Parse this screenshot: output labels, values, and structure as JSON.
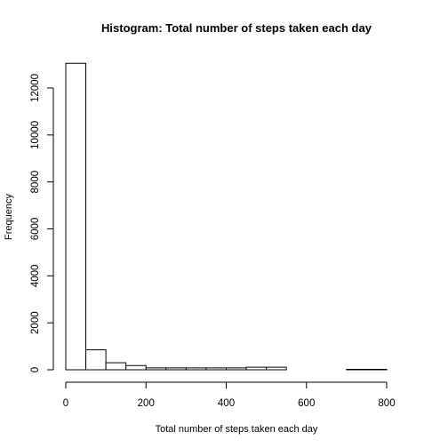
{
  "chart_data": {
    "type": "bar",
    "title": "Histogram: Total number of steps taken each day",
    "xlabel": "Total number of steps taken each day",
    "ylabel": "Frequency",
    "bin_width": 50,
    "bins": [
      {
        "start": 0,
        "end": 50,
        "count": 13050
      },
      {
        "start": 50,
        "end": 100,
        "count": 850
      },
      {
        "start": 100,
        "end": 150,
        "count": 300
      },
      {
        "start": 150,
        "end": 200,
        "count": 180
      },
      {
        "start": 200,
        "end": 250,
        "count": 80
      },
      {
        "start": 250,
        "end": 300,
        "count": 80
      },
      {
        "start": 300,
        "end": 350,
        "count": 80
      },
      {
        "start": 350,
        "end": 400,
        "count": 80
      },
      {
        "start": 400,
        "end": 450,
        "count": 80
      },
      {
        "start": 450,
        "end": 500,
        "count": 110
      },
      {
        "start": 500,
        "end": 550,
        "count": 110
      },
      {
        "start": 550,
        "end": 600,
        "count": 0
      },
      {
        "start": 600,
        "end": 650,
        "count": 0
      },
      {
        "start": 650,
        "end": 700,
        "count": 0
      },
      {
        "start": 700,
        "end": 750,
        "count": 20
      },
      {
        "start": 750,
        "end": 800,
        "count": 20
      }
    ],
    "xticks": [
      "0",
      "200",
      "400",
      "600",
      "800"
    ],
    "yticks": [
      "0",
      "2000",
      "4000",
      "6000",
      "8000",
      "10000",
      "12000"
    ],
    "xlim": [
      0,
      850
    ],
    "ylim": [
      0,
      13050
    ],
    "grid": false,
    "legend": "none"
  }
}
